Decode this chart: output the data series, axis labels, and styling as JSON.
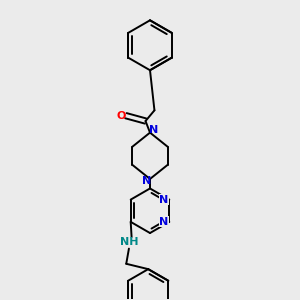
{
  "background_color": "#ebebeb",
  "bond_color": "#000000",
  "bond_width": 1.4,
  "atom_colors": {
    "N": "#0000dd",
    "O": "#ff0000",
    "NH": "#008888",
    "C": "#000000"
  },
  "font_size_N": 8,
  "font_size_O": 8,
  "font_size_NH": 8,
  "fig_width": 3.0,
  "fig_height": 3.0,
  "dpi": 100
}
